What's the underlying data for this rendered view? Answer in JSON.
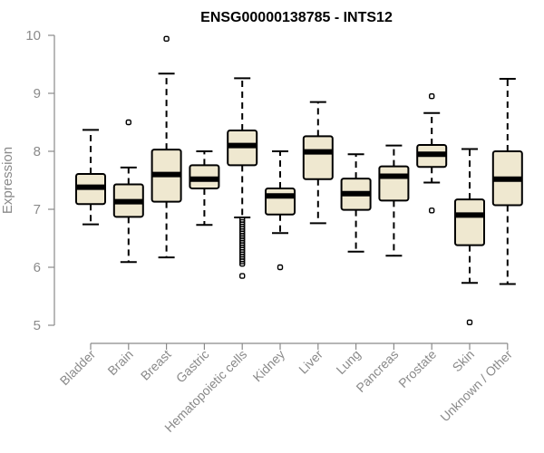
{
  "chart_data": {
    "type": "box",
    "title": "ENSG00000138785 - INTS12",
    "xlabel": "",
    "ylabel": "Expression",
    "ylim": [
      5,
      10
    ],
    "yticks": [
      5,
      6,
      7,
      8,
      9,
      10
    ],
    "box_fill": "#efe8d0",
    "grid": false,
    "categories": [
      "Bladder",
      "Brain",
      "Breast",
      "Gastric",
      "Hematopoietic cells",
      "Kidney",
      "Liver",
      "Lung",
      "Pancreas",
      "Prostate",
      "Skin",
      "Unknown / Other"
    ],
    "boxes": [
      {
        "whisker_low": 6.74,
        "q1": 7.09,
        "median": 7.38,
        "q3": 7.61,
        "whisker_high": 8.37,
        "outliers": []
      },
      {
        "whisker_low": 6.09,
        "q1": 6.87,
        "median": 7.13,
        "q3": 7.43,
        "whisker_high": 7.72,
        "outliers": [
          8.5
        ]
      },
      {
        "whisker_low": 6.17,
        "q1": 7.13,
        "median": 7.6,
        "q3": 8.03,
        "whisker_high": 9.34,
        "outliers": [
          9.94
        ]
      },
      {
        "whisker_low": 6.73,
        "q1": 7.36,
        "median": 7.52,
        "q3": 7.76,
        "whisker_high": 8.0,
        "outliers": []
      },
      {
        "whisker_low": 6.86,
        "q1": 7.76,
        "median": 8.1,
        "q3": 8.36,
        "whisker_high": 9.26,
        "outliers": [
          6.82,
          6.78,
          6.74,
          6.7,
          6.66,
          6.62,
          6.58,
          6.54,
          6.5,
          6.46,
          6.42,
          6.38,
          6.34,
          6.3,
          6.26,
          6.22,
          6.18,
          6.14,
          6.1,
          6.06,
          5.85
        ]
      },
      {
        "whisker_low": 6.59,
        "q1": 6.91,
        "median": 7.23,
        "q3": 7.36,
        "whisker_high": 8.0,
        "outliers": [
          6.0
        ]
      },
      {
        "whisker_low": 6.76,
        "q1": 7.52,
        "median": 7.99,
        "q3": 8.26,
        "whisker_high": 8.85,
        "outliers": []
      },
      {
        "whisker_low": 6.27,
        "q1": 6.99,
        "median": 7.27,
        "q3": 7.53,
        "whisker_high": 7.95,
        "outliers": []
      },
      {
        "whisker_low": 6.2,
        "q1": 7.15,
        "median": 7.57,
        "q3": 7.74,
        "whisker_high": 8.1,
        "outliers": []
      },
      {
        "whisker_low": 7.46,
        "q1": 7.73,
        "median": 7.95,
        "q3": 8.11,
        "whisker_high": 8.66,
        "outliers": [
          8.95,
          6.98
        ]
      },
      {
        "whisker_low": 5.73,
        "q1": 6.38,
        "median": 6.9,
        "q3": 7.17,
        "whisker_high": 8.04,
        "outliers": [
          5.05
        ]
      },
      {
        "whisker_low": 5.71,
        "q1": 7.07,
        "median": 7.52,
        "q3": 8.0,
        "whisker_high": 9.25,
        "outliers": []
      }
    ]
  }
}
